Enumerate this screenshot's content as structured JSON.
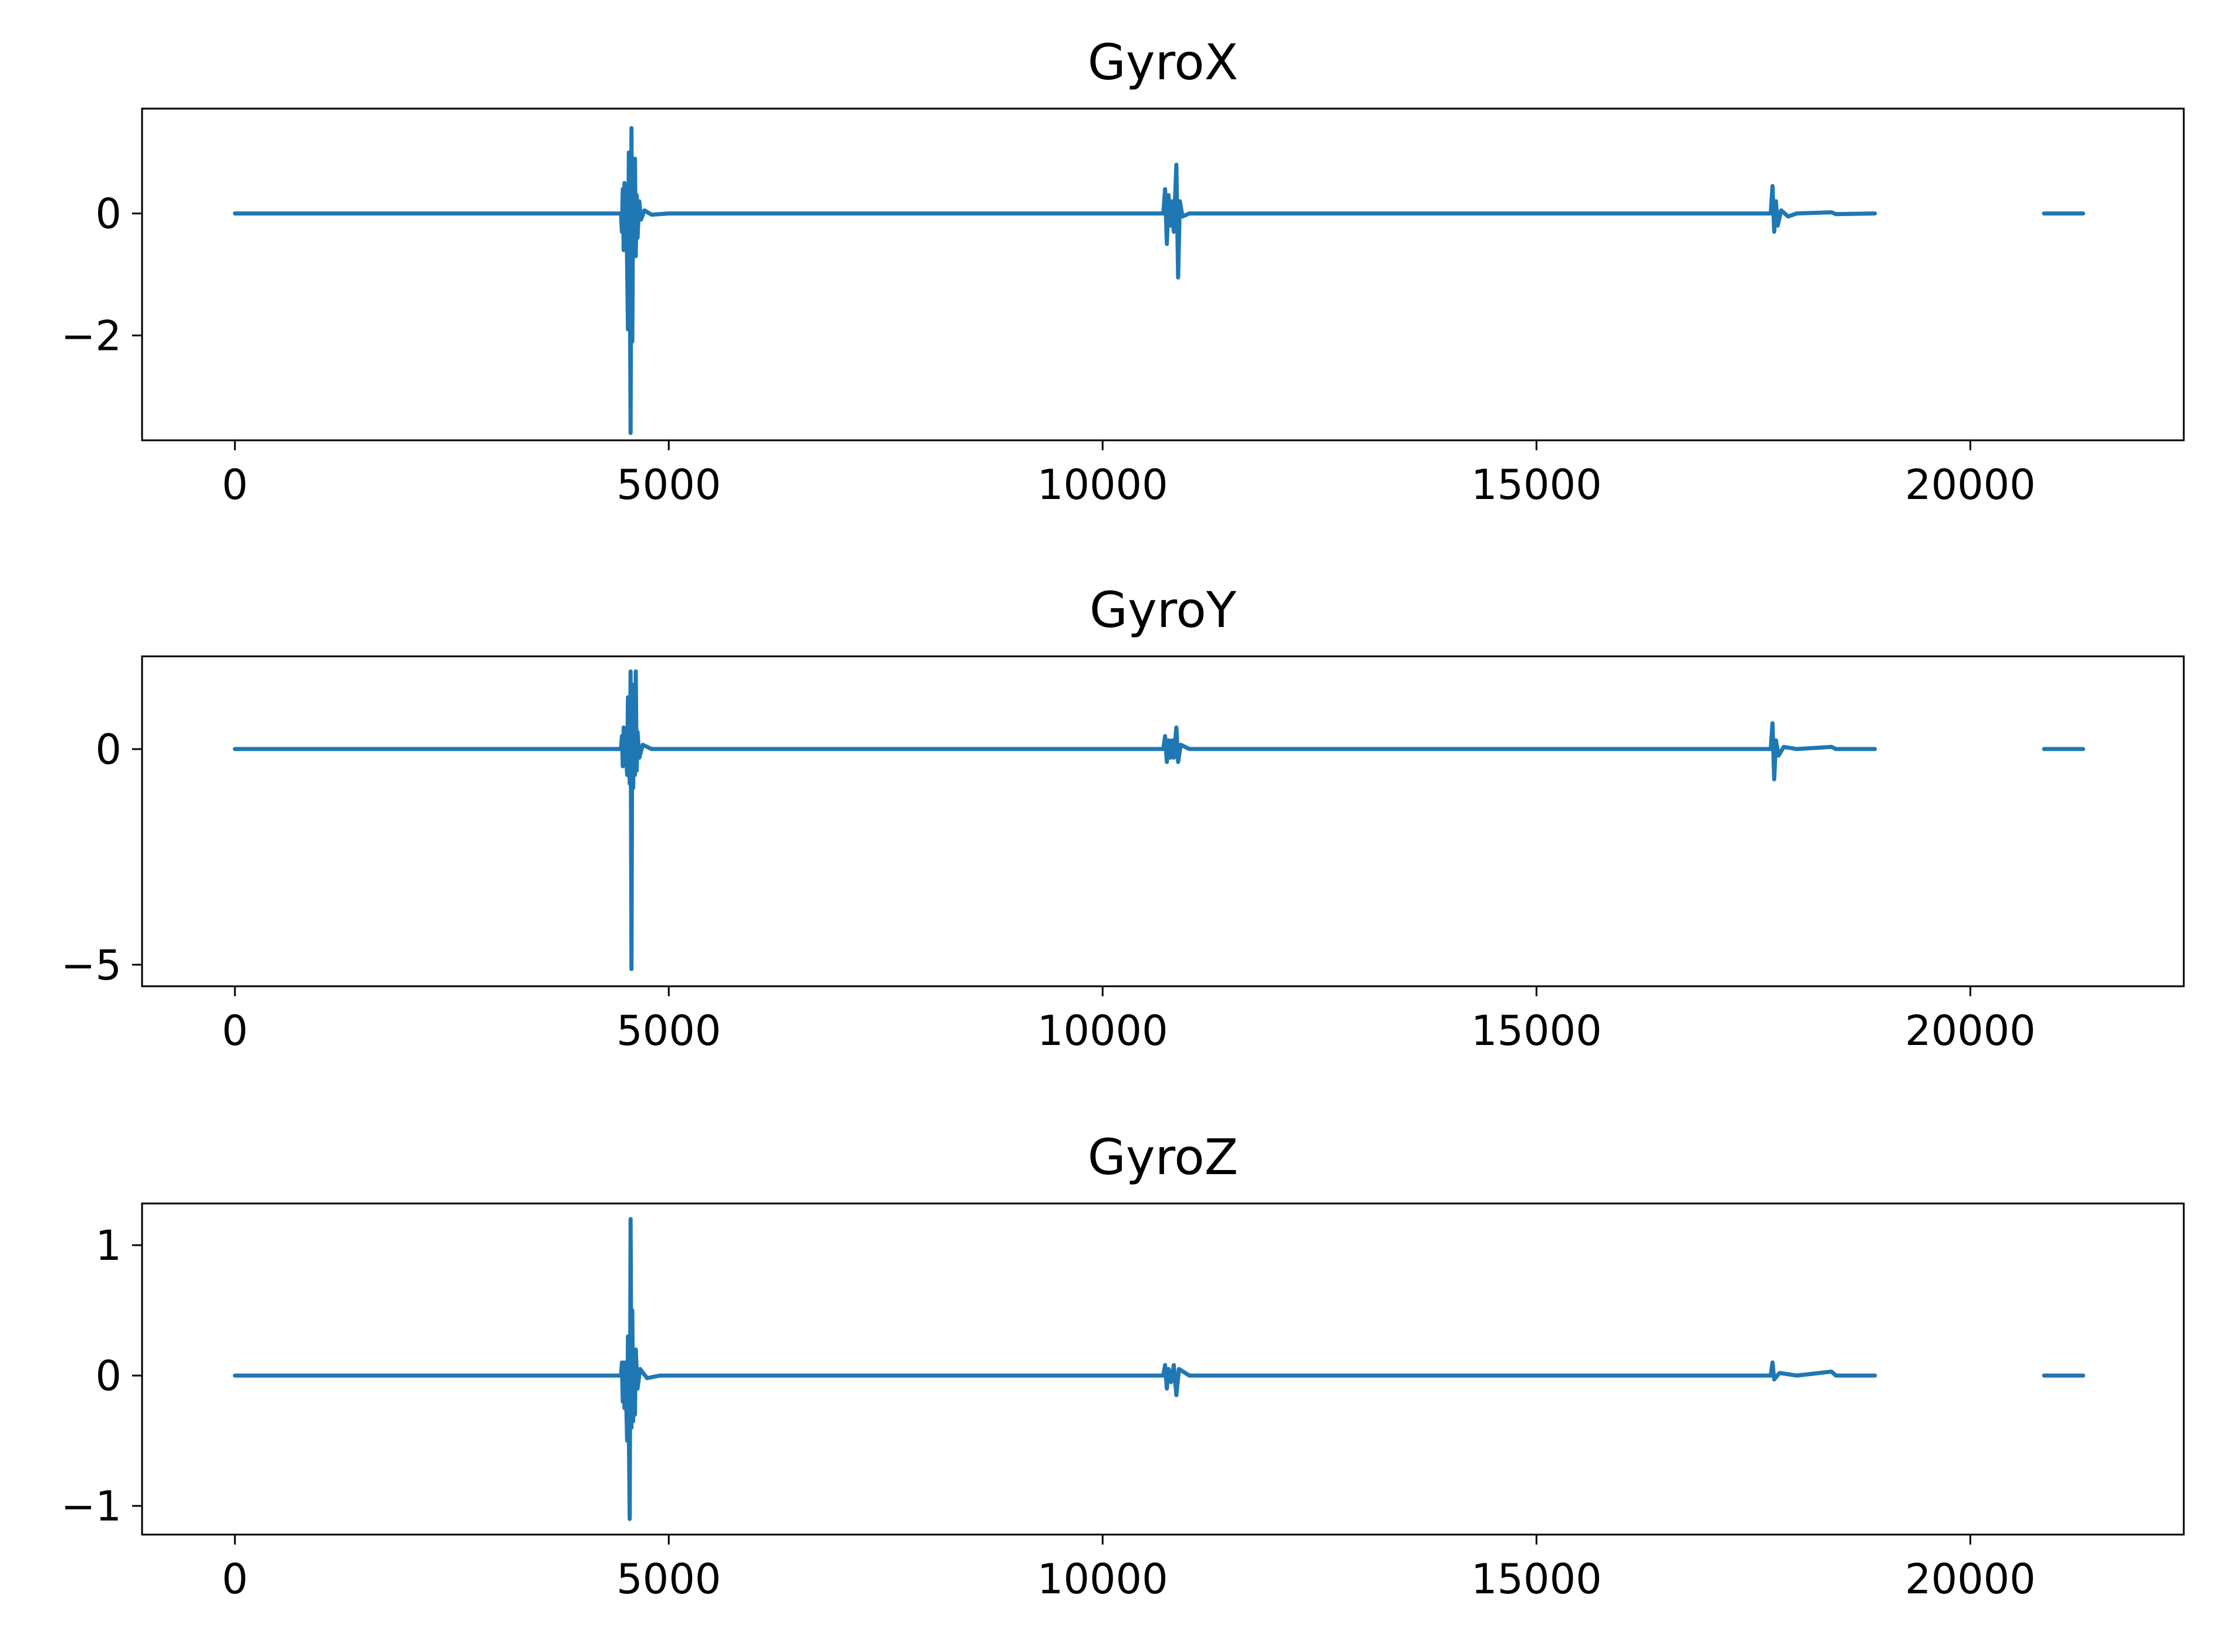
{
  "chart_data": [
    {
      "type": "line",
      "title": "GyroX",
      "xlabel": "",
      "ylabel": "",
      "xlim": [
        -1070,
        22460
      ],
      "ylim": [
        -3.72,
        1.72
      ],
      "xticks": [
        0,
        5000,
        10000,
        15000,
        20000
      ],
      "xtick_labels": [
        "0",
        "5000",
        "10000",
        "15000",
        "20000"
      ],
      "yticks": [
        0,
        -2
      ],
      "ytick_labels": [
        "0",
        "−2"
      ],
      "grid": false,
      "series": [
        {
          "color": "#1f77b4",
          "segments": [
            [
              [
                0,
                0
              ],
              [
                4450,
                0
              ],
              [
                4460,
                -0.3
              ],
              [
                4470,
                0.4
              ],
              [
                4480,
                -0.6
              ],
              [
                4490,
                0.5
              ],
              [
                4500,
                -0.2
              ],
              [
                4510,
                0.3
              ],
              [
                4530,
                -1.9
              ],
              [
                4540,
                1.0
              ],
              [
                4550,
                -0.4
              ],
              [
                4560,
                -3.6
              ],
              [
                4570,
                1.4
              ],
              [
                4580,
                -2.1
              ],
              [
                4590,
                0.6
              ],
              [
                4600,
                -0.5
              ],
              [
                4610,
                0.9
              ],
              [
                4620,
                -0.7
              ],
              [
                4630,
                0.3
              ],
              [
                4640,
                -0.4
              ],
              [
                4660,
                0.2
              ],
              [
                4680,
                -0.1
              ],
              [
                4720,
                0.05
              ],
              [
                4800,
                -0.02
              ],
              [
                5000,
                0
              ],
              [
                10700,
                0
              ],
              [
                10720,
                0.4
              ],
              [
                10740,
                -0.5
              ],
              [
                10760,
                0.3
              ],
              [
                10780,
                -0.2
              ],
              [
                10800,
                0.2
              ],
              [
                10820,
                -0.3
              ],
              [
                10850,
                0.8
              ],
              [
                10870,
                -1.05
              ],
              [
                10890,
                0.2
              ],
              [
                10920,
                -0.05
              ],
              [
                11000,
                0
              ],
              [
                17700,
                0
              ],
              [
                17720,
                0.45
              ],
              [
                17740,
                -0.3
              ],
              [
                17760,
                0.2
              ],
              [
                17780,
                -0.2
              ],
              [
                17820,
                0.05
              ],
              [
                17900,
                -0.05
              ],
              [
                18000,
                0
              ],
              [
                18400,
                0.02
              ],
              [
                18450,
                -0.01
              ],
              [
                18900,
                0
              ]
            ],
            [
              [
                20850,
                0
              ],
              [
                21300,
                0
              ]
            ]
          ]
        }
      ]
    },
    {
      "type": "line",
      "title": "GyroY",
      "xlabel": "",
      "ylabel": "",
      "xlim": [
        -1070,
        22460
      ],
      "ylim": [
        -5.5,
        2.15
      ],
      "xticks": [
        0,
        5000,
        10000,
        15000,
        20000
      ],
      "xtick_labels": [
        "0",
        "5000",
        "10000",
        "15000",
        "20000"
      ],
      "yticks": [
        0,
        -5
      ],
      "ytick_labels": [
        "0",
        "−5"
      ],
      "grid": false,
      "series": [
        {
          "color": "#1f77b4",
          "segments": [
            [
              [
                0,
                0
              ],
              [
                4450,
                0
              ],
              [
                4460,
                0.3
              ],
              [
                4470,
                -0.4
              ],
              [
                4480,
                0.5
              ],
              [
                4490,
                -0.3
              ],
              [
                4500,
                0.2
              ],
              [
                4520,
                -0.6
              ],
              [
                4530,
                1.2
              ],
              [
                4550,
                -0.8
              ],
              [
                4560,
                1.8
              ],
              [
                4570,
                -5.1
              ],
              [
                4580,
                1.5
              ],
              [
                4590,
                -0.9
              ],
              [
                4600,
                1.1
              ],
              [
                4610,
                -0.6
              ],
              [
                4620,
                1.8
              ],
              [
                4630,
                -0.5
              ],
              [
                4640,
                0.4
              ],
              [
                4660,
                -0.2
              ],
              [
                4700,
                0.1
              ],
              [
                4800,
                0
              ],
              [
                10700,
                0
              ],
              [
                10720,
                0.3
              ],
              [
                10740,
                -0.3
              ],
              [
                10760,
                0.2
              ],
              [
                10780,
                -0.2
              ],
              [
                10800,
                0.2
              ],
              [
                10820,
                -0.2
              ],
              [
                10850,
                0.5
              ],
              [
                10870,
                -0.3
              ],
              [
                10900,
                0.1
              ],
              [
                11000,
                0
              ],
              [
                17700,
                0
              ],
              [
                17720,
                0.6
              ],
              [
                17740,
                -0.7
              ],
              [
                17760,
                0.2
              ],
              [
                17790,
                -0.15
              ],
              [
                17850,
                0.05
              ],
              [
                18000,
                0
              ],
              [
                18400,
                0.05
              ],
              [
                18450,
                0
              ],
              [
                18900,
                0
              ]
            ],
            [
              [
                20850,
                0
              ],
              [
                21300,
                0
              ]
            ]
          ]
        }
      ]
    },
    {
      "type": "line",
      "title": "GyroZ",
      "xlabel": "",
      "ylabel": "",
      "xlim": [
        -1070,
        22460
      ],
      "ylim": [
        -1.22,
        1.32
      ],
      "xticks": [
        0,
        5000,
        10000,
        15000,
        20000
      ],
      "xtick_labels": [
        "0",
        "5000",
        "10000",
        "15000",
        "20000"
      ],
      "yticks": [
        1,
        0,
        -1
      ],
      "ytick_labels": [
        "1",
        "0",
        "−1"
      ],
      "grid": false,
      "series": [
        {
          "color": "#1f77b4",
          "segments": [
            [
              [
                0,
                0
              ],
              [
                4450,
                0
              ],
              [
                4460,
                0.1
              ],
              [
                4470,
                -0.2
              ],
              [
                4480,
                0.1
              ],
              [
                4490,
                -0.25
              ],
              [
                4500,
                0.1
              ],
              [
                4520,
                -0.5
              ],
              [
                4530,
                0.3
              ],
              [
                4550,
                -1.1
              ],
              [
                4560,
                1.2
              ],
              [
                4570,
                -0.4
              ],
              [
                4580,
                0.5
              ],
              [
                4590,
                -0.35
              ],
              [
                4600,
                0.2
              ],
              [
                4610,
                -0.3
              ],
              [
                4620,
                0.2
              ],
              [
                4640,
                -0.1
              ],
              [
                4670,
                0.05
              ],
              [
                4750,
                -0.02
              ],
              [
                4900,
                0
              ],
              [
                10700,
                0
              ],
              [
                10720,
                0.08
              ],
              [
                10740,
                -0.1
              ],
              [
                10760,
                0.05
              ],
              [
                10790,
                -0.05
              ],
              [
                10820,
                0.08
              ],
              [
                10850,
                -0.15
              ],
              [
                10880,
                0.05
              ],
              [
                11000,
                0
              ],
              [
                17700,
                0
              ],
              [
                17720,
                0.1
              ],
              [
                17740,
                -0.03
              ],
              [
                17800,
                0.02
              ],
              [
                18000,
                0
              ],
              [
                18400,
                0.03
              ],
              [
                18450,
                0
              ],
              [
                18900,
                0
              ]
            ],
            [
              [
                20850,
                0
              ],
              [
                21300,
                0
              ]
            ]
          ]
        }
      ]
    }
  ]
}
